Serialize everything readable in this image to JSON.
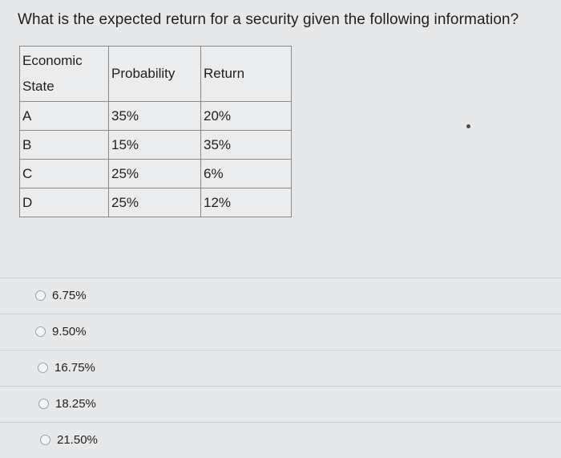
{
  "question": "What is the expected return for a security given the following information?",
  "table": {
    "headers": {
      "state_line1": "Economic",
      "state_line2": "State",
      "probability": "Probability",
      "return": "Return"
    },
    "rows": [
      {
        "state": "A",
        "probability": "35%",
        "return": "20%"
      },
      {
        "state": "B",
        "probability": "15%",
        "return": "35%"
      },
      {
        "state": "C",
        "probability": "25%",
        "return": "6%"
      },
      {
        "state": "D",
        "probability": "25%",
        "return": "12%"
      }
    ]
  },
  "options": [
    {
      "label": "6.75%"
    },
    {
      "label": "9.50%"
    },
    {
      "label": "16.75%"
    },
    {
      "label": "18.25%"
    },
    {
      "label": "21.50%"
    }
  ]
}
